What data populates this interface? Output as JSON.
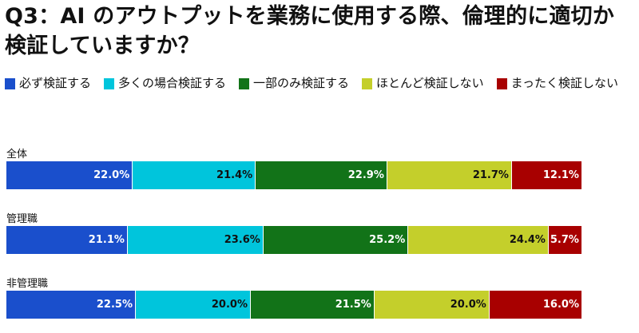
{
  "title": "Q3：AI のアウトプットを業務に使用する際、倫理的に適切か検証していますか？",
  "chart_data": {
    "type": "bar",
    "orientation": "horizontal-stacked-100",
    "categories": [
      "全体",
      "管理職",
      "非管理職"
    ],
    "legend_placement": "top",
    "series": [
      {
        "name": "必ず検証する",
        "color": "#1a4fcc",
        "values": [
          22.0,
          21.1,
          22.5
        ],
        "labels": [
          "22.0%",
          "21.1%",
          "22.5%"
        ]
      },
      {
        "name": "多くの場合検証する",
        "color": "#00c5dc",
        "values": [
          21.4,
          23.6,
          20.0
        ],
        "labels": [
          "21.4%",
          "23.6%",
          "20.0%"
        ]
      },
      {
        "name": "一部のみ検証する",
        "color": "#127318",
        "values": [
          22.9,
          25.2,
          21.5
        ],
        "labels": [
          "22.9%",
          "25.2%",
          "21.5%"
        ]
      },
      {
        "name": "ほとんど検証しない",
        "color": "#c4cf2b",
        "values": [
          21.7,
          24.4,
          20.0
        ],
        "labels": [
          "21.7%",
          "24.4%",
          "20.0%"
        ]
      },
      {
        "name": "まったく検証しない",
        "color": "#a80000",
        "values": [
          12.1,
          5.7,
          16.0
        ],
        "labels": [
          "12.1%",
          "5.7%",
          "16.0%"
        ]
      }
    ],
    "label_colors": [
      "#ffffff",
      "#111111",
      "#ffffff",
      "#111111",
      "#ffffff"
    ]
  }
}
